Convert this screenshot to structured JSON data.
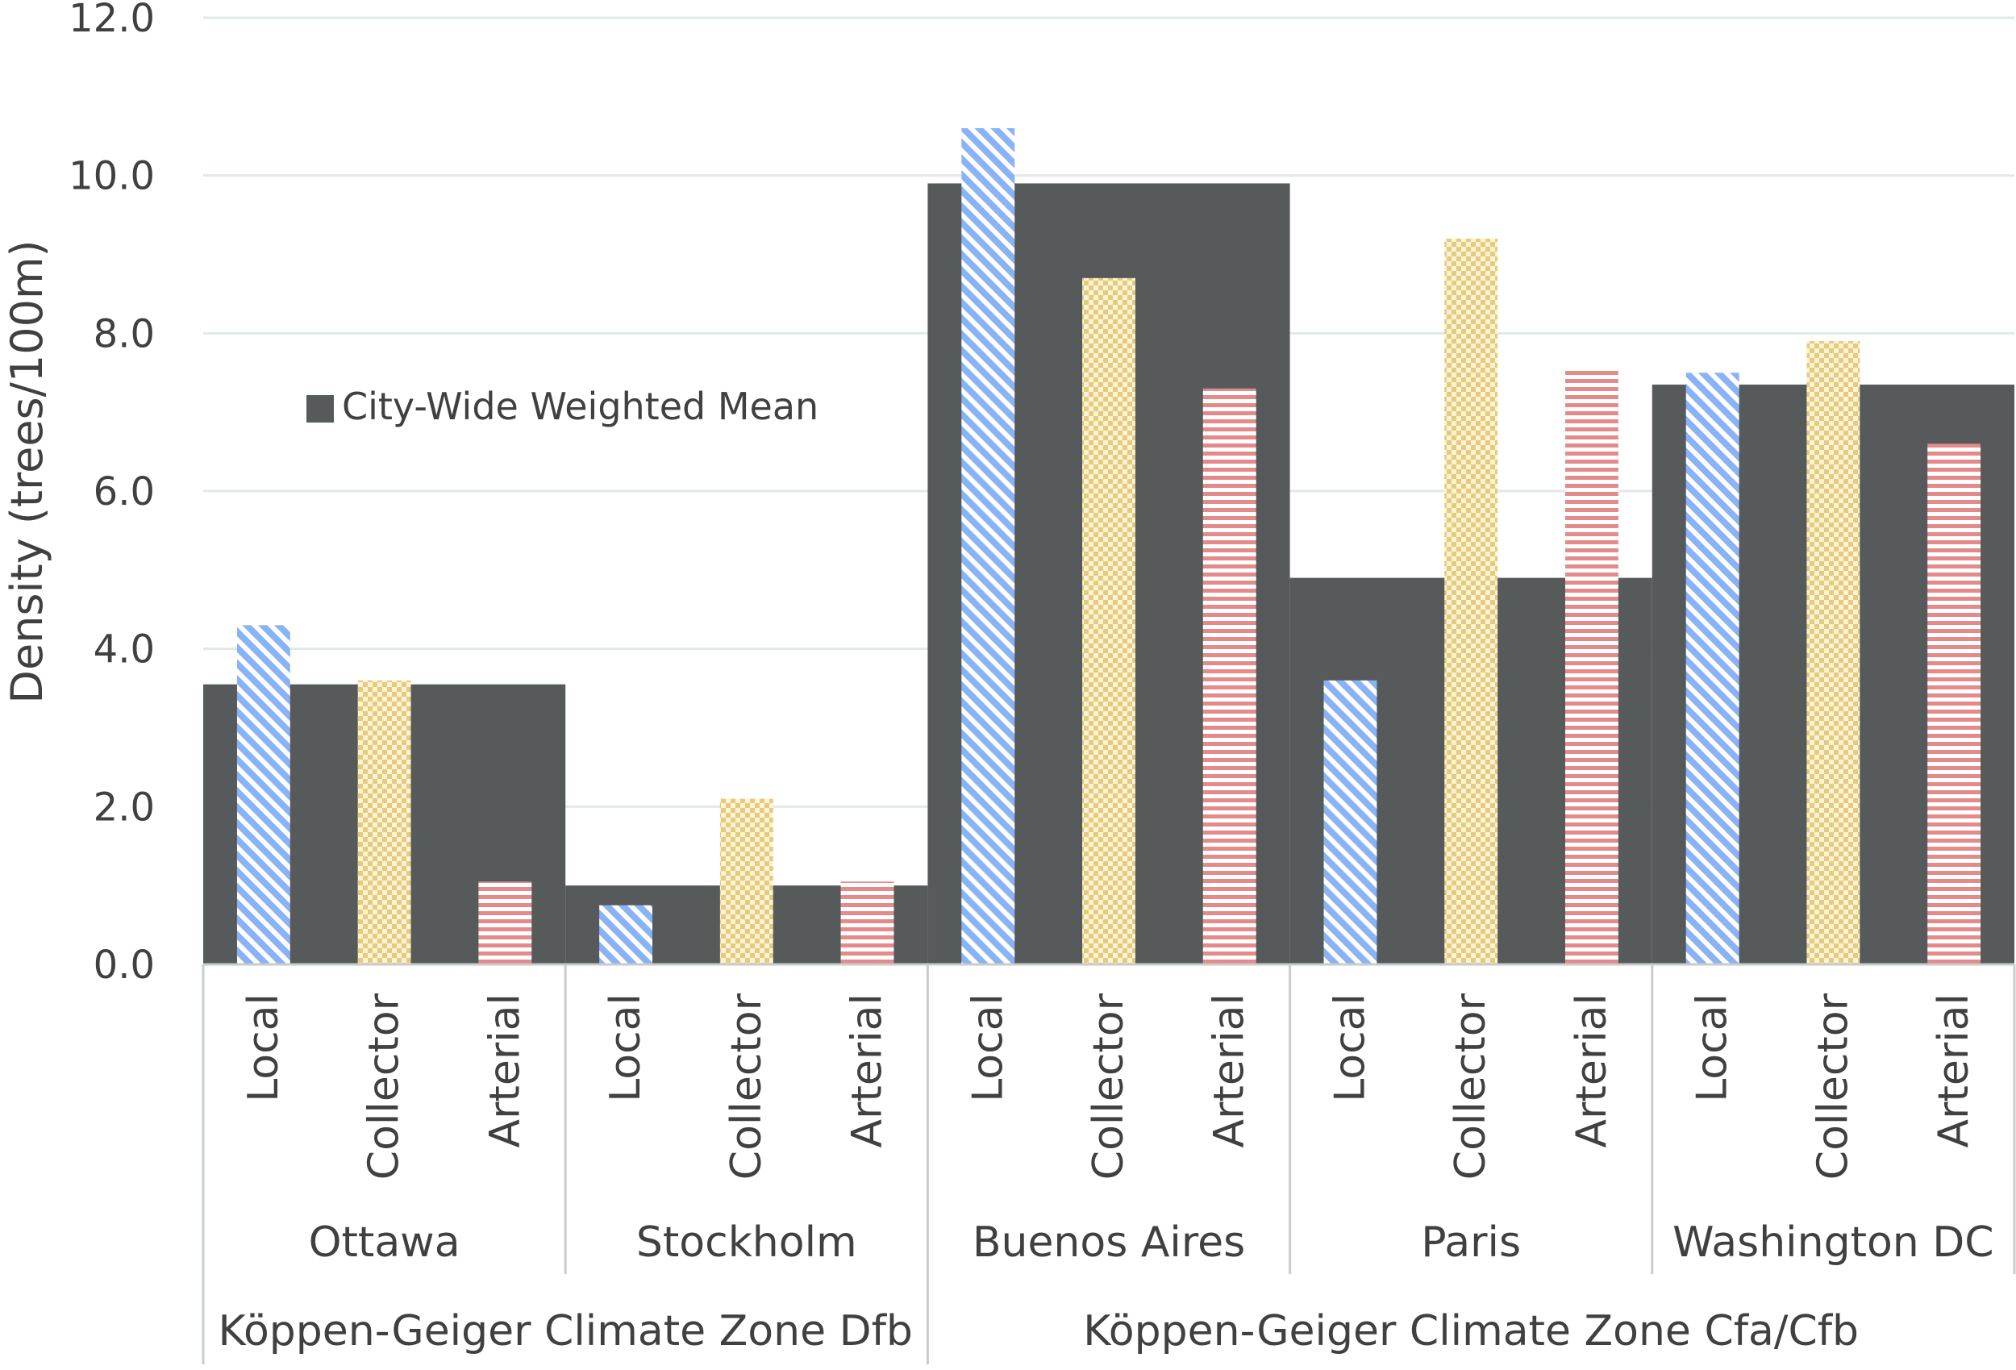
{
  "chart_data": {
    "type": "bar",
    "ylabel": "Density (trees/100m)",
    "ylim": [
      0,
      12
    ],
    "y_ticks": [
      "0.0",
      "2.0",
      "4.0",
      "6.0",
      "8.0",
      "10.0",
      "12.0"
    ],
    "grid": true,
    "legend": {
      "position": "upper-left",
      "entries": [
        "City-Wide Weighted Mean"
      ]
    },
    "road_types": [
      "Local",
      "Collector",
      "Arterial"
    ],
    "cities": [
      "Ottawa",
      "Stockholm",
      "Buenos Aires",
      "Paris",
      "Washington DC"
    ],
    "climate_zones": [
      {
        "label": "Köppen-Geiger Climate Zone Dfb",
        "cities": [
          "Ottawa",
          "Stockholm"
        ]
      },
      {
        "label": "Köppen-Geiger Climate Zone Cfa/Cfb",
        "cities": [
          "Buenos Aires",
          "Paris",
          "Washington DC"
        ]
      }
    ],
    "series": [
      {
        "name": "City-Wide Weighted Mean",
        "values": [
          3.55,
          1.0,
          9.9,
          4.9,
          7.35
        ]
      },
      {
        "road_type": "Local",
        "values": [
          4.3,
          0.75,
          10.6,
          3.6,
          7.5
        ]
      },
      {
        "road_type": "Collector",
        "values": [
          3.6,
          2.1,
          8.7,
          9.2,
          7.9
        ]
      },
      {
        "road_type": "Arterial",
        "values": [
          1.05,
          1.05,
          7.3,
          7.55,
          6.6
        ]
      }
    ],
    "colors": {
      "mean": "#565a5a",
      "local": "#8ab3f5",
      "collector": "#e8cb78",
      "arterial": "#e48a8a",
      "text": "#404040",
      "grid": "#e2e8e8",
      "axis": "#c8cccc"
    }
  }
}
